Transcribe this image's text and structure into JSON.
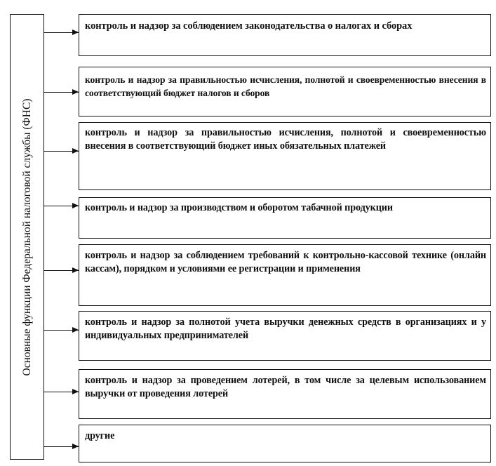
{
  "root": {
    "label": "Основные функции Федеральной налоговой службы (ФНС)"
  },
  "functions": [
    {
      "text": "контроль и надзор за соблюдением законодательства о налогах и сборах"
    },
    {
      "text": "контроль и надзор за правильностью исчисления, полнотой и своевременностью внесения в соответствующий бюджет налогов и сборов"
    },
    {
      "text": "контроль и надзор за правильностью исчисления, полнотой и своевременностью внесения в соответствующий бюджет иных обязательных платежей"
    },
    {
      "text": "контроль и надзор за производством и оборотом табачной продукции"
    },
    {
      "text": "контроль и надзор за соблюдением требований к контрольно-кассовой технике (онлайн кассам), порядком и условиями ее регистрации и применения"
    },
    {
      "text": "контроль и надзор за полнотой учета выручки денежных средств в организациях и у индивидуальных предпринимателей"
    },
    {
      "text": "контроль и надзор за проведением лотерей, в том числе за целевым использованием выручки от проведения лотерей"
    },
    {
      "text": "другие"
    }
  ]
}
